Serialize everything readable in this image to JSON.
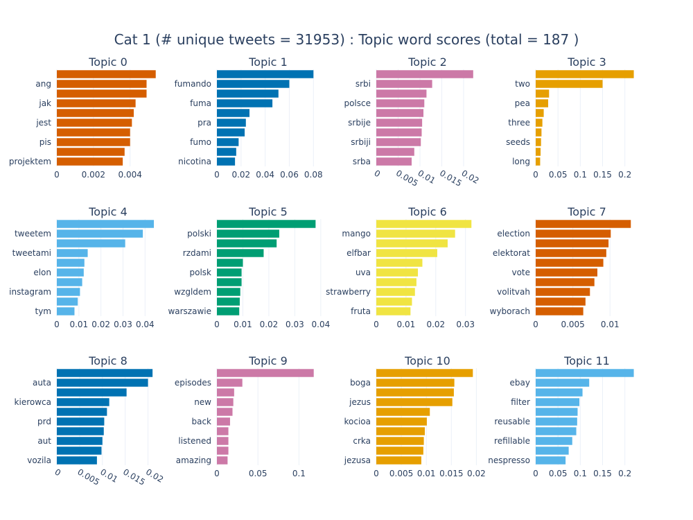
{
  "title": "Cat 1 (# unique tweets = 31953) : Topic word scores (total = 187 )",
  "colors": {
    "orange": "#d55e00",
    "blue": "#0072b2",
    "pink": "#cc79a7",
    "gold": "#e69f00",
    "sky": "#56b4e9",
    "green": "#009e73",
    "yellow": "#f0e442"
  },
  "chart_data": [
    {
      "type": "bar",
      "title": "Topic 0",
      "color": "#d55e00",
      "xlim": [
        0,
        0.0056
      ],
      "xticks": [
        0,
        0.002,
        0.004
      ],
      "xticklabels": [
        "0",
        "0.002",
        "0.004"
      ],
      "rotate": false,
      "categories": [
        "",
        "ang",
        "",
        "jak",
        "",
        "jest",
        "",
        "pis",
        "",
        "projektem"
      ],
      "values": [
        0.0054,
        0.0049,
        0.0049,
        0.0043,
        0.0042,
        0.0041,
        0.004,
        0.004,
        0.0037,
        0.0036
      ]
    },
    {
      "type": "bar",
      "title": "Topic 1",
      "color": "#0072b2",
      "xlim": [
        0,
        0.085
      ],
      "xticks": [
        0,
        0.02,
        0.04,
        0.06,
        0.08
      ],
      "xticklabels": [
        "0",
        "0.02",
        "0.04",
        "0.06",
        "0.08"
      ],
      "rotate": false,
      "categories": [
        "",
        "fumando",
        "",
        "fuma",
        "",
        "pra",
        "",
        "fumo",
        "",
        "nicotina"
      ],
      "values": [
        0.08,
        0.06,
        0.051,
        0.046,
        0.027,
        0.024,
        0.023,
        0.018,
        0.016,
        0.015
      ]
    },
    {
      "type": "bar",
      "title": "Topic 2",
      "color": "#cc79a7",
      "xlim": [
        0,
        0.0235
      ],
      "xticks": [
        0,
        0.005,
        0.01,
        0.015,
        0.02
      ],
      "xticklabels": [
        "0",
        "0.005",
        "0.01",
        "0.015",
        "0.02"
      ],
      "rotate": true,
      "categories": [
        "",
        "srbi",
        "",
        "polsce",
        "",
        "srbije",
        "",
        "srbiji",
        "",
        "srba"
      ],
      "values": [
        0.0222,
        0.0128,
        0.0115,
        0.011,
        0.0108,
        0.0105,
        0.0104,
        0.0102,
        0.0087,
        0.0081
      ]
    },
    {
      "type": "bar",
      "title": "Topic 3",
      "color": "#e69f00",
      "xlim": [
        0,
        0.23
      ],
      "xticks": [
        0,
        0.05,
        0.1,
        0.15,
        0.2
      ],
      "xticklabels": [
        "0",
        "0.05",
        "0.1",
        "0.15",
        "0.2"
      ],
      "rotate": false,
      "categories": [
        "",
        "two",
        "",
        "pea",
        "",
        "three",
        "",
        "seeds",
        "",
        "long"
      ],
      "values": [
        0.22,
        0.15,
        0.03,
        0.028,
        0.018,
        0.015,
        0.013,
        0.012,
        0.011,
        0.01
      ]
    },
    {
      "type": "bar",
      "title": "Topic 4",
      "color": "#56b4e9",
      "xlim": [
        0,
        0.0465
      ],
      "xticks": [
        0,
        0.01,
        0.02,
        0.03,
        0.04
      ],
      "xticklabels": [
        "0",
        "0.01",
        "0.02",
        "0.03",
        "0.04"
      ],
      "rotate": false,
      "categories": [
        "",
        "tweetem",
        "",
        "tweetami",
        "",
        "elon",
        "",
        "instagram",
        "",
        "tym"
      ],
      "values": [
        0.044,
        0.039,
        0.031,
        0.014,
        0.0125,
        0.0122,
        0.0115,
        0.0105,
        0.0095,
        0.008
      ]
    },
    {
      "type": "bar",
      "title": "Topic 5",
      "color": "#009e73",
      "xlim": [
        0,
        0.0395
      ],
      "xticks": [
        0,
        0.01,
        0.02,
        0.03,
        0.04
      ],
      "xticklabels": [
        "0",
        "0.01",
        "0.02",
        "0.03",
        "0.04"
      ],
      "rotate": false,
      "categories": [
        "",
        "polski",
        "",
        "rzdami",
        "",
        "polsk",
        "",
        "wzgldem",
        "",
        "warszawie"
      ],
      "values": [
        0.038,
        0.024,
        0.023,
        0.018,
        0.01,
        0.0095,
        0.0095,
        0.009,
        0.0088,
        0.0086
      ]
    },
    {
      "type": "bar",
      "title": "Topic 6",
      "color": "#f0e442",
      "xlim": [
        0,
        0.0345
      ],
      "xticks": [
        0,
        0.01,
        0.02,
        0.03
      ],
      "xticklabels": [
        "0",
        "0.01",
        "0.02",
        "0.03"
      ],
      "rotate": false,
      "categories": [
        "",
        "mango",
        "",
        "elfbar",
        "",
        "uva",
        "",
        "strawberry",
        "",
        "fruta"
      ],
      "values": [
        0.032,
        0.0265,
        0.024,
        0.0205,
        0.0155,
        0.014,
        0.0135,
        0.013,
        0.012,
        0.0115
      ]
    },
    {
      "type": "bar",
      "title": "Topic 7",
      "color": "#d55e00",
      "xlim": [
        0,
        0.0138
      ],
      "xticks": [
        0,
        0.005,
        0.01
      ],
      "xticklabels": [
        "0",
        "0.005",
        "0.01"
      ],
      "rotate": false,
      "categories": [
        "",
        "election",
        "",
        "elektorat",
        "",
        "vote",
        "",
        "volitvah",
        "",
        "wyborach"
      ],
      "values": [
        0.0128,
        0.0101,
        0.0098,
        0.0095,
        0.0091,
        0.0083,
        0.0079,
        0.0073,
        0.0067,
        0.0064
      ]
    },
    {
      "type": "bar",
      "title": "Topic 8",
      "color": "#0072b2",
      "xlim": [
        0,
        0.0225
      ],
      "xticks": [
        0,
        0.005,
        0.01,
        0.015,
        0.02
      ],
      "xticklabels": [
        "0",
        "0.005",
        "0.01",
        "0.015",
        "0.02"
      ],
      "rotate": true,
      "categories": [
        "",
        "auta",
        "",
        "kierowca",
        "",
        "prd",
        "",
        "aut",
        "",
        "vozila"
      ],
      "values": [
        0.021,
        0.02,
        0.0153,
        0.0115,
        0.011,
        0.0104,
        0.0103,
        0.01,
        0.0098,
        0.0088
      ]
    },
    {
      "type": "bar",
      "title": "Topic 9",
      "color": "#cc79a7",
      "xlim": [
        0,
        0.125
      ],
      "xticks": [
        0,
        0.05,
        0.1
      ],
      "xticklabels": [
        "0",
        "0.05",
        "0.1"
      ],
      "rotate": false,
      "categories": [
        "",
        "episodes",
        "",
        "new",
        "",
        "back",
        "",
        "listened",
        "",
        "amazing"
      ],
      "values": [
        0.118,
        0.031,
        0.021,
        0.02,
        0.019,
        0.016,
        0.014,
        0.014,
        0.014,
        0.013
      ]
    },
    {
      "type": "bar",
      "title": "Topic 10",
      "color": "#e69f00",
      "xlim": [
        0,
        0.0205
      ],
      "xticks": [
        0,
        0.005,
        0.01,
        0.015,
        0.02
      ],
      "xticklabels": [
        "0",
        "0.005",
        "0.01",
        "0.015",
        "0.02"
      ],
      "rotate": false,
      "categories": [
        "",
        "boga",
        "",
        "jezus",
        "",
        "kocioa",
        "",
        "crka",
        "",
        "jezusa"
      ],
      "values": [
        0.0193,
        0.0156,
        0.0155,
        0.0152,
        0.0107,
        0.0101,
        0.0097,
        0.0095,
        0.0094,
        0.009
      ]
    },
    {
      "type": "bar",
      "title": "Topic 11",
      "color": "#56b4e9",
      "xlim": [
        0,
        0.23
      ],
      "xticks": [
        0,
        0.05,
        0.1,
        0.15,
        0.2
      ],
      "xticklabels": [
        "0",
        "0.05",
        "0.1",
        "0.15",
        "0.2"
      ],
      "rotate": false,
      "categories": [
        "",
        "ebay",
        "",
        "filter",
        "",
        "reusable",
        "",
        "refillable",
        "",
        "nespresso"
      ],
      "values": [
        0.22,
        0.12,
        0.105,
        0.098,
        0.094,
        0.093,
        0.091,
        0.082,
        0.074,
        0.067
      ]
    }
  ]
}
